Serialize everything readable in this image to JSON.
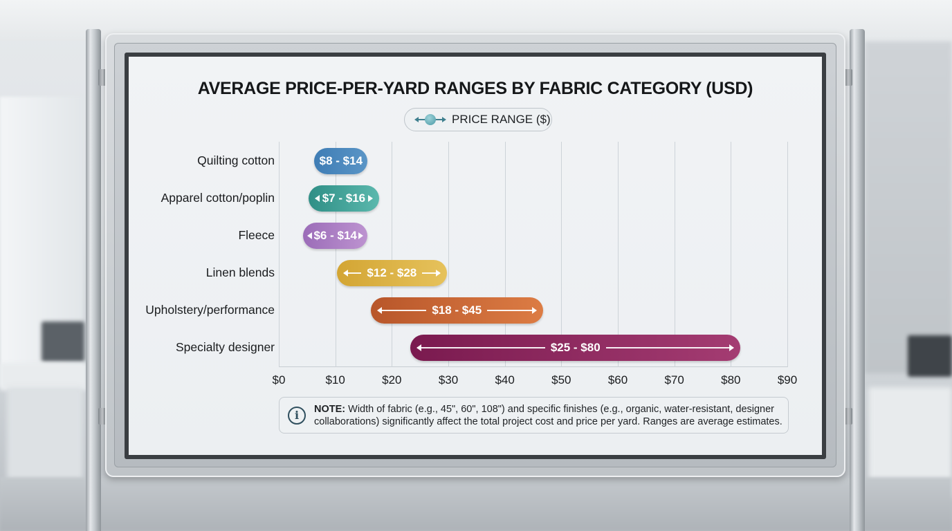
{
  "chart_data": {
    "type": "bar",
    "subtype": "floating-range-horizontal",
    "title": "AVERAGE PRICE-PER-YARD RANGES BY FABRIC CATEGORY (USD)",
    "legend": [
      "PRICE RANGE ($)"
    ],
    "legend_position": "top-center",
    "xlabel": "",
    "ylabel": "",
    "xlim": [
      0,
      90
    ],
    "grid": true,
    "x_ticks": [
      "$0",
      "$10",
      "$20",
      "$30",
      "$40",
      "$50",
      "$60",
      "$70",
      "$80",
      "$90"
    ],
    "categories": [
      "Quilting cotton",
      "Apparel cotton/poplin",
      "Fleece",
      "Linen blends",
      "Upholstery/performance",
      "Specialty designer"
    ],
    "series": [
      {
        "name": "PRICE RANGE ($)",
        "low": [
          8,
          7,
          6,
          12,
          18,
          25
        ],
        "high": [
          14,
          16,
          14,
          28,
          45,
          80
        ]
      }
    ],
    "data_labels": [
      "$8 - $14",
      "$7 - $16",
      "$6 - $14",
      "$12 - $28",
      "$18 - $45",
      "$25 - $80"
    ],
    "annotation": "NOTE: Width of fabric (e.g., 45\", 60\", 108\") and specific finishes (e.g., organic, water-resistant, designer collaborations) significantly affect the total project cost and price per yard. Ranges are average estimates."
  },
  "header": {
    "title": "AVERAGE PRICE-PER-YARD RANGES BY FABRIC CATEGORY (USD)",
    "legend_label": "PRICE RANGE ($)",
    "legend_icon": "range-arrow-icon"
  },
  "rows": [
    {
      "label": "Quilting cotton",
      "range": "$8 - $14",
      "low": 8,
      "high": 14,
      "color": "#3f7db5",
      "color2": "#5a95c6",
      "arrows": false
    },
    {
      "label": "Apparel cotton/poplin",
      "range": "$7 - $16",
      "low": 7,
      "high": 16,
      "color": "#2f8f86",
      "color2": "#5bb8ad",
      "arrows": true
    },
    {
      "label": "Fleece",
      "range": "$6 - $14",
      "low": 6,
      "high": 14,
      "color": "#9b6cb8",
      "color2": "#bd93d0",
      "arrows": true
    },
    {
      "label": "Linen blends",
      "range": "$12 - $28",
      "low": 12,
      "high": 28,
      "color": "#d3a533",
      "color2": "#e6c25c",
      "arrows": true
    },
    {
      "label": "Upholstery/performance",
      "range": "$18 - $45",
      "low": 18,
      "high": 45,
      "color": "#b8562a",
      "color2": "#dc7c44",
      "arrows": true
    },
    {
      "label": "Specialty designer",
      "range": "$25 - $80",
      "low": 25,
      "high": 80,
      "color": "#7a1a4f",
      "color2": "#a43c72",
      "arrows": true
    }
  ],
  "axis": {
    "ticks": [
      "$0",
      "$10",
      "$20",
      "$30",
      "$40",
      "$50",
      "$60",
      "$70",
      "$80",
      "$90"
    ]
  },
  "note": {
    "icon": "info-icon",
    "icon_glyph": "i",
    "prefix": "NOTE:",
    "line1": " Width of fabric (e.g., 45\", 60\", 108\") and specific finishes (e.g., organic, water-resistant, designer",
    "line2": "collaborations) significantly affect the total project cost and price per yard. Ranges are average estimates."
  }
}
